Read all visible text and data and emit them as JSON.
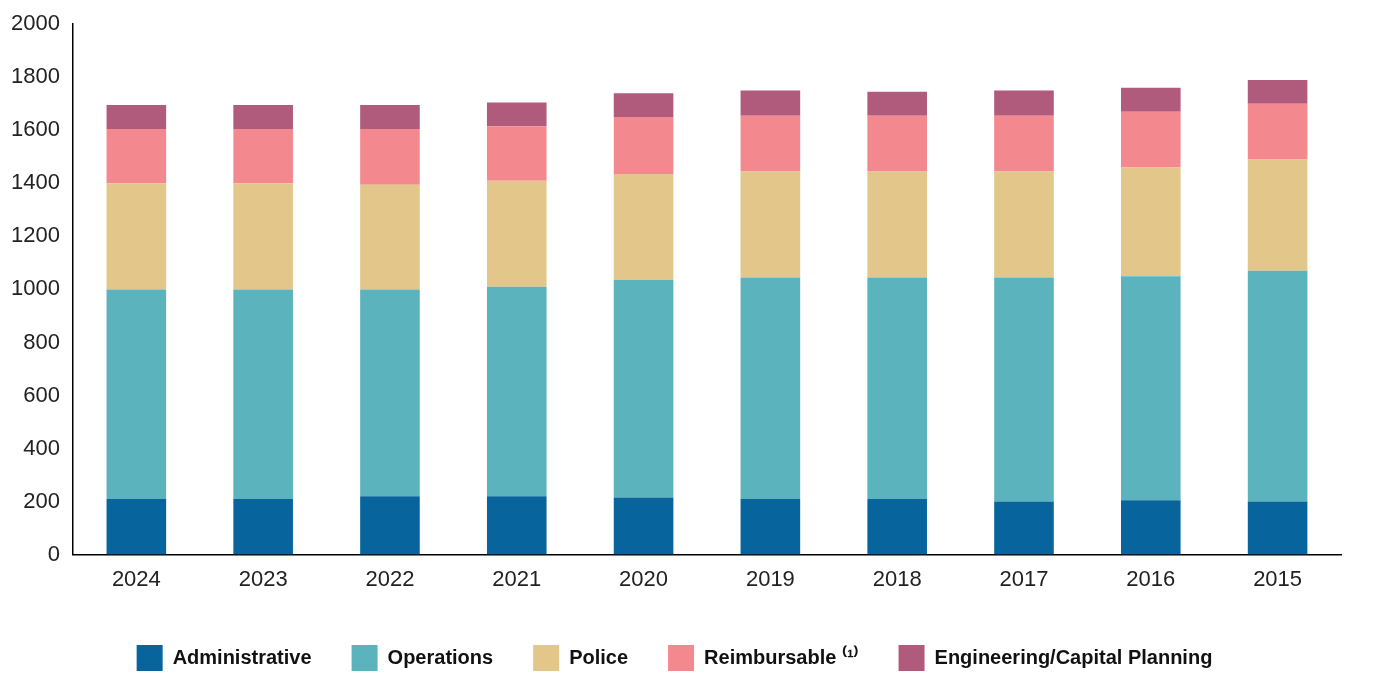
{
  "chart_data": {
    "type": "bar",
    "stacked": true,
    "categories": [
      "2024",
      "2023",
      "2022",
      "2021",
      "2020",
      "2019",
      "2018",
      "2017",
      "2016",
      "2015"
    ],
    "series": [
      {
        "name": "Administrative",
        "color": "#08649c",
        "values": [
          210,
          210,
          220,
          220,
          215,
          210,
          210,
          200,
          205,
          200
        ]
      },
      {
        "name": "Operations",
        "color": "#5bb3bd",
        "values": [
          790,
          790,
          780,
          790,
          820,
          835,
          835,
          845,
          845,
          870
        ]
      },
      {
        "name": "Police",
        "color": "#e2c68a",
        "values": [
          400,
          400,
          395,
          400,
          400,
          400,
          400,
          400,
          410,
          420
        ]
      },
      {
        "name": "Reimbursable ⁽¹⁾",
        "color": "#f4888f",
        "values": [
          205,
          205,
          210,
          205,
          215,
          210,
          210,
          210,
          210,
          210
        ]
      },
      {
        "name": "Engineering/Capital Planning",
        "color": "#b05a7c",
        "values": [
          90,
          90,
          90,
          90,
          90,
          95,
          90,
          95,
          90,
          90
        ]
      }
    ],
    "ylim": [
      0,
      2000
    ],
    "yticks": [
      0,
      200,
      400,
      600,
      800,
      1000,
      1200,
      1400,
      1600,
      1800,
      2000
    ],
    "grid": false,
    "legend": "bottom"
  }
}
